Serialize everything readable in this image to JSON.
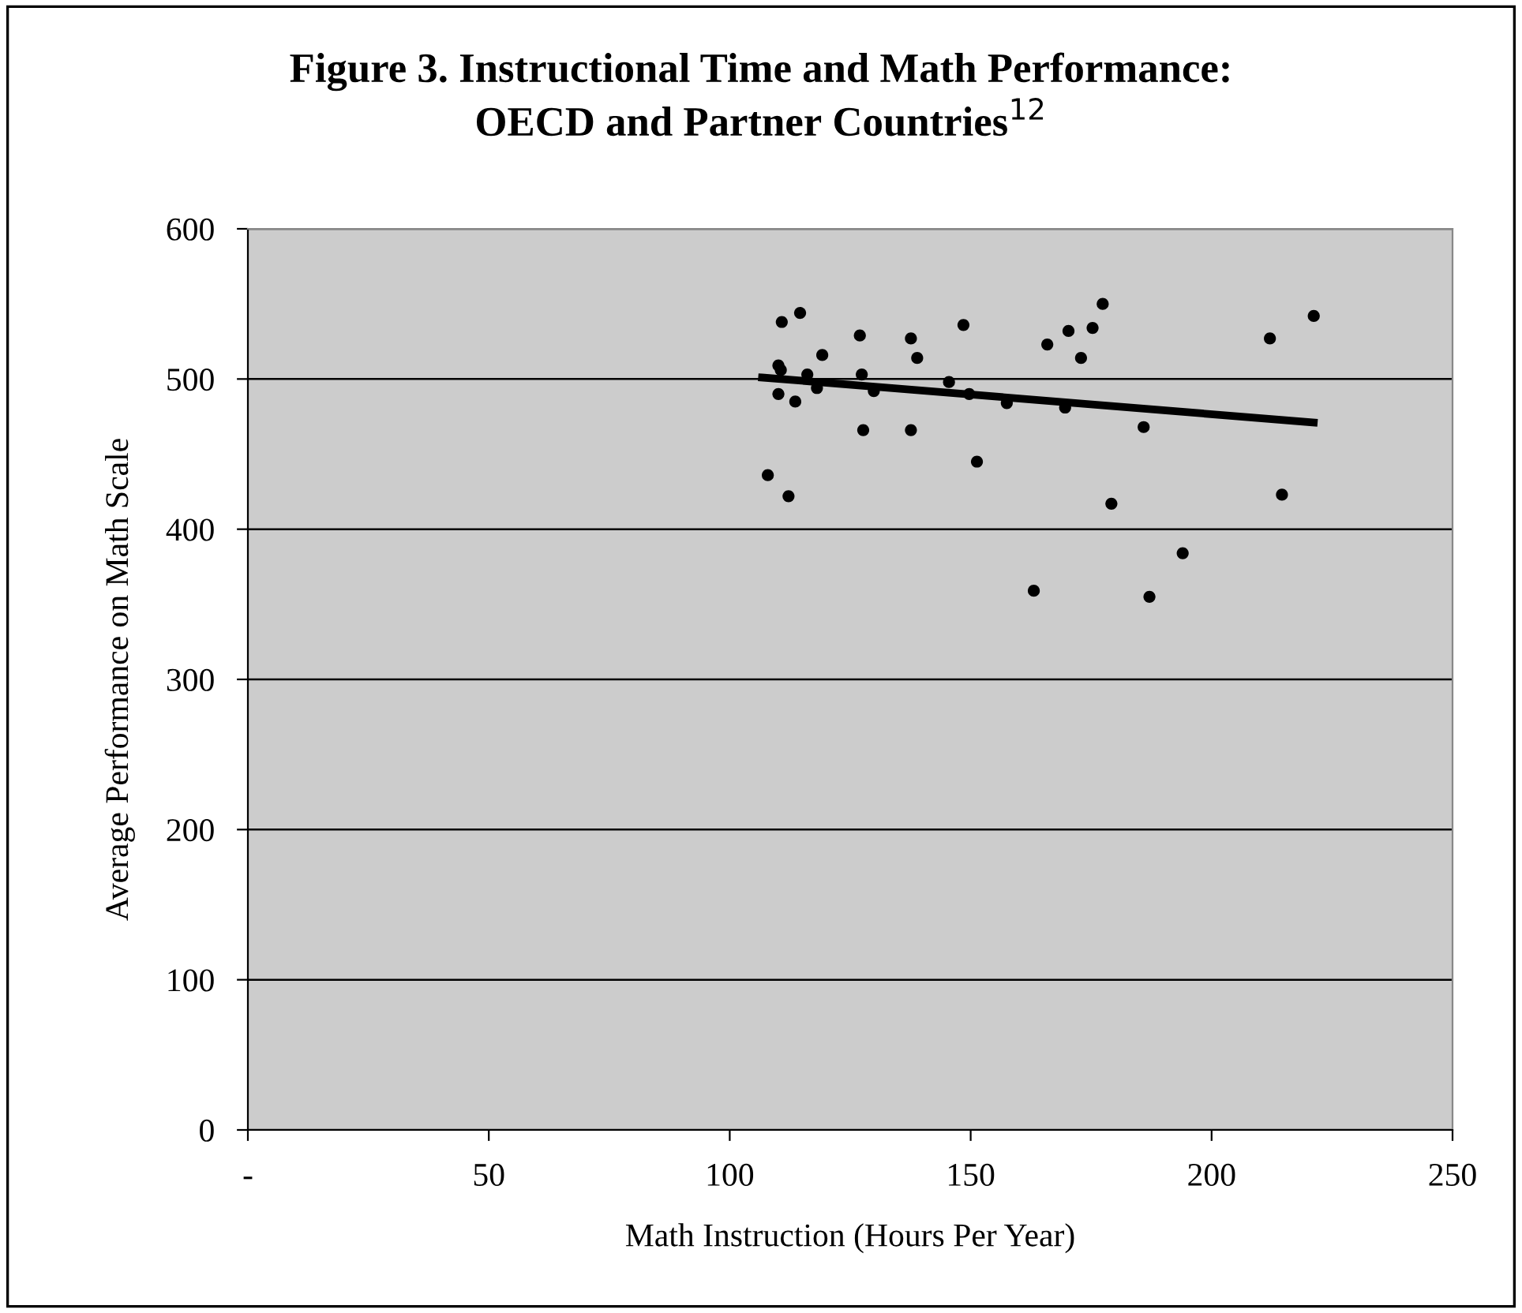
{
  "chart_data": {
    "type": "scatter",
    "title": "Figure 3. Instructional Time and Math Performance:\nOECD and Partner Countries$^{12}$",
    "xlabel": "Math Instruction (Hours Per Year)",
    "ylabel": "Average Performance on Math Scale",
    "xlim": [
      0,
      250
    ],
    "xticks": [
      {
        "value": 0,
        "label": "-"
      },
      50,
      100,
      150,
      200,
      250
    ],
    "ylim": [
      0,
      600
    ],
    "yticks": [
      0,
      100,
      200,
      300,
      400,
      500,
      600
    ],
    "grid": "y",
    "legend": false,
    "marker": "circle",
    "series": [
      {
        "color": "#000000",
        "x": [
          107.9,
          110.1,
          110.6,
          110.8,
          110.1,
          112.2,
          113.6,
          114.6,
          116.1,
          118.1,
          119.2,
          127.0,
          127.4,
          127.7,
          129.9,
          137.6,
          137.6,
          138.9,
          145.5,
          148.5,
          149.7,
          151.3,
          157.5,
          165.9,
          169.6,
          170.3,
          172.9,
          175.3,
          177.4,
          179.2,
          185.9,
          212.1,
          214.6,
          221.2,
          163.1,
          187.1,
          194.0
        ],
        "values": [
          436,
          509,
          506,
          538,
          490,
          422,
          485,
          544,
          503,
          494,
          516,
          529,
          503,
          466,
          492,
          527,
          466,
          514,
          498,
          536,
          490,
          445,
          484,
          523,
          481,
          532,
          514,
          534,
          550,
          417,
          468,
          527,
          423,
          542,
          359,
          355,
          384
        ]
      },
      {
        "type": "line",
        "color": "#000000",
        "marker": "none",
        "line_style": "solid",
        "x": [
          106.7,
          221.2
        ],
        "values": [
          501,
          471
        ]
      }
    ]
  }
}
